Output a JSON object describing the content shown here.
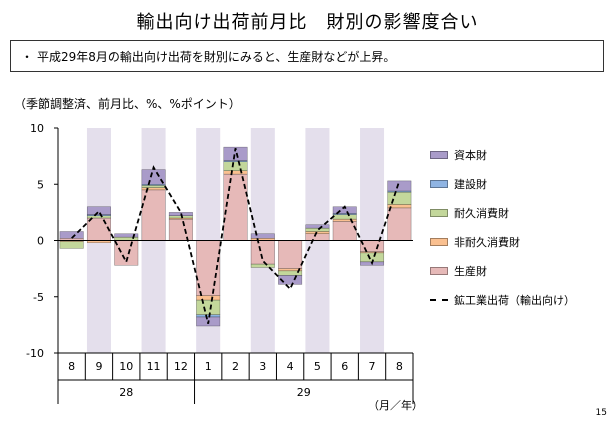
{
  "title": "輸出向け出荷前月比　財別の影響度合い",
  "note": {
    "bullet": "・",
    "text": "平成29年8月の輸出向け出荷を財別にみると、生産財などが上昇。"
  },
  "unit_label": "（季節調整済、前月比、%、%ポイント）",
  "page_number": "15",
  "colors": {
    "capital_goods": "#a99bc9",
    "construction_goods": "#8fb4e3",
    "consumer_durables": "#c3d79b",
    "consumer_nondurables": "#fac090",
    "producer_goods": "#e6b9b8",
    "shade": "#e4dfec"
  },
  "chart_data": {
    "type": "bar",
    "stacked": true,
    "categories": [
      "8",
      "9",
      "10",
      "11",
      "12",
      "1",
      "2",
      "3",
      "4",
      "5",
      "6",
      "7",
      "8"
    ],
    "year_labels": [
      {
        "label": "28",
        "from": 0,
        "to": 4
      },
      {
        "label": "29",
        "from": 5,
        "to": 12
      }
    ],
    "shaded_months": [
      1,
      3,
      5,
      7,
      9,
      11
    ],
    "ylim": [
      -10,
      10
    ],
    "yticks": [
      "10",
      "5",
      "0",
      "-5",
      "-10"
    ],
    "x_unit": "（月／年）",
    "series": [
      {
        "name": "資本財",
        "color": "capital_goods",
        "values": [
          0.6,
          0.7,
          0.3,
          1.3,
          0.3,
          -0.8,
          1.2,
          0.4,
          -0.8,
          0.3,
          0.6,
          -0.3,
          0.9
        ]
      },
      {
        "name": "建設財",
        "color": "construction_goods",
        "values": [
          0.0,
          0.1,
          0.0,
          0.1,
          0.0,
          -0.2,
          0.1,
          0.0,
          0.0,
          0.0,
          0.1,
          0.0,
          0.1
        ]
      },
      {
        "name": "耐久消費財",
        "color": "consumer_durables",
        "values": [
          -0.6,
          0.2,
          0.3,
          0.2,
          0.2,
          -1.3,
          0.8,
          -0.3,
          -0.4,
          0.3,
          0.4,
          -0.8,
          1.1
        ]
      },
      {
        "name": "非耐久消費財",
        "color": "consumer_nondurables",
        "values": [
          -0.1,
          -0.2,
          0.0,
          0.2,
          0.1,
          -0.4,
          0.3,
          0.2,
          -0.2,
          0.2,
          0.2,
          -0.1,
          0.3
        ]
      },
      {
        "name": "生産財",
        "color": "producer_goods",
        "values": [
          0.2,
          2.0,
          -2.2,
          4.5,
          1.9,
          -4.9,
          5.9,
          -2.1,
          -2.5,
          0.6,
          1.7,
          -1.0,
          2.9
        ]
      }
    ],
    "line": {
      "name": "鉱工業出荷（輸出向け）",
      "values": [
        0.2,
        2.6,
        -1.9,
        6.5,
        2.5,
        -7.4,
        8.2,
        -1.8,
        -4.3,
        0.9,
        3.0,
        -2.0,
        5.3
      ]
    }
  }
}
